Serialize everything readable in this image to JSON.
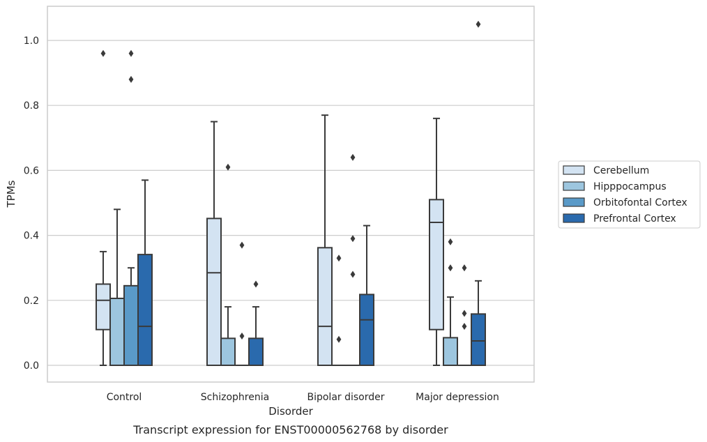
{
  "chart_data": {
    "type": "box",
    "caption": "Transcript expression for ENST00000562768 by disorder",
    "xlabel": "Disorder",
    "ylabel": "TPMs",
    "ylim": [
      -0.05,
      1.11
    ],
    "yticks": [
      "0.0",
      "0.2",
      "0.4",
      "0.6",
      "0.8",
      "1.0"
    ],
    "grid": true,
    "legend_position": "right",
    "categories": [
      "Control",
      "Schizophrenia",
      "Bipolar disorder",
      "Major depression"
    ],
    "series": [
      {
        "name": "Cerebellum",
        "color": "#d3e3f2",
        "boxes": [
          {
            "whislo": 0.0,
            "q1": 0.11,
            "med": 0.2,
            "q3": 0.25,
            "whishi": 0.35,
            "fliers": [
              0.96
            ]
          },
          {
            "whislo": 0.0,
            "q1": 0.0,
            "med": 0.285,
            "q3": 0.452,
            "whishi": 0.75,
            "fliers": []
          },
          {
            "whislo": 0.0,
            "q1": 0.0,
            "med": 0.12,
            "q3": 0.362,
            "whishi": 0.77,
            "fliers": []
          },
          {
            "whislo": 0.0,
            "q1": 0.11,
            "med": 0.44,
            "q3": 0.51,
            "whishi": 0.76,
            "fliers": []
          }
        ]
      },
      {
        "name": "Hipppocampus",
        "color": "#9dc6df",
        "boxes": [
          {
            "whislo": 0.0,
            "q1": 0.0,
            "med": 0.0,
            "q3": 0.206,
            "whishi": 0.48,
            "fliers": []
          },
          {
            "whislo": 0.0,
            "q1": 0.0,
            "med": 0.0,
            "q3": 0.083,
            "whishi": 0.18,
            "fliers": [
              0.61
            ]
          },
          {
            "whislo": 0.0,
            "q1": 0.0,
            "med": 0.0,
            "q3": 0.0,
            "whishi": 0.0,
            "fliers": [
              0.08,
              0.33
            ]
          },
          {
            "whislo": 0.0,
            "q1": 0.0,
            "med": 0.0,
            "q3": 0.085,
            "whishi": 0.21,
            "fliers": [
              0.3,
              0.38
            ]
          }
        ]
      },
      {
        "name": "Orbitofontal Cortex",
        "color": "#5a9ac8",
        "boxes": [
          {
            "whislo": 0.0,
            "q1": 0.0,
            "med": 0.0,
            "q3": 0.245,
            "whishi": 0.3,
            "fliers": [
              0.88,
              0.96
            ]
          },
          {
            "whislo": 0.0,
            "q1": 0.0,
            "med": 0.0,
            "q3": 0.0,
            "whishi": 0.0,
            "fliers": [
              0.09,
              0.37
            ]
          },
          {
            "whislo": 0.0,
            "q1": 0.0,
            "med": 0.0,
            "q3": 0.0,
            "whishi": 0.0,
            "fliers": [
              0.28,
              0.39,
              0.64
            ]
          },
          {
            "whislo": 0.0,
            "q1": 0.0,
            "med": 0.0,
            "q3": 0.0,
            "whishi": 0.0,
            "fliers": [
              0.12,
              0.16,
              0.3
            ]
          }
        ]
      },
      {
        "name": "Prefrontal Cortex",
        "color": "#2a6aad",
        "boxes": [
          {
            "whislo": 0.0,
            "q1": 0.0,
            "med": 0.12,
            "q3": 0.341,
            "whishi": 0.57,
            "fliers": []
          },
          {
            "whislo": 0.0,
            "q1": 0.0,
            "med": 0.0,
            "q3": 0.083,
            "whishi": 0.18,
            "fliers": [
              0.25
            ]
          },
          {
            "whislo": 0.0,
            "q1": 0.0,
            "med": 0.14,
            "q3": 0.218,
            "whishi": 0.43,
            "fliers": []
          },
          {
            "whislo": 0.0,
            "q1": 0.0,
            "med": 0.075,
            "q3": 0.158,
            "whishi": 0.26,
            "fliers": [
              1.05
            ]
          }
        ]
      }
    ]
  }
}
